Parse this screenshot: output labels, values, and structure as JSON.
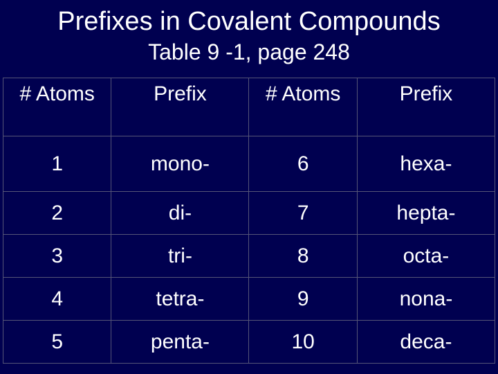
{
  "title": "Prefixes in Covalent Compounds",
  "subtitle": "Table 9 -1, page 248",
  "background_color": "#000050",
  "text_color": "#ffffff",
  "border_color": "#555577",
  "title_fontsize": 38,
  "subtitle_fontsize": 32,
  "header_fontsize": 30,
  "cell_fontsize": 30,
  "headers": {
    "h1": "# Atoms",
    "h2": "Prefix",
    "h3": "# Atoms",
    "h4": "Prefix"
  },
  "rows": [
    {
      "a1": "1",
      "p1": "mono-",
      "a2": "6",
      "p2": "hexa-"
    },
    {
      "a1": "2",
      "p1": "di-",
      "a2": "7",
      "p2": "hepta-"
    },
    {
      "a1": "3",
      "p1": "tri-",
      "a2": "8",
      "p2": "octa-"
    },
    {
      "a1": "4",
      "p1": "tetra-",
      "a2": "9",
      "p2": "nona-"
    },
    {
      "a1": "5",
      "p1": "penta-",
      "a2": "10",
      "p2": "deca-"
    }
  ]
}
